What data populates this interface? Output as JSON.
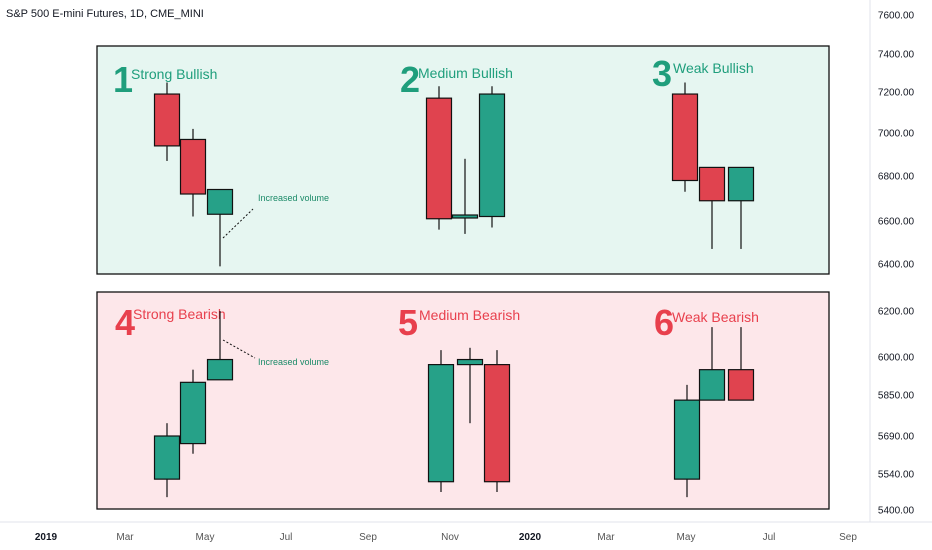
{
  "chart_title": "S&P 500 E-mini Futures, 1D, CME_MINI",
  "colors": {
    "bull": "#26a188",
    "bear": "#e0434f",
    "bull_num": "#1f9e7c",
    "bear_num": "#e8404d",
    "bull_panel": "#e6f6f1",
    "bear_panel": "#fde7ea"
  },
  "chart_data": {
    "type": "candlestick",
    "y_axis_ticks": [
      "7600.00",
      "7400.00",
      "7200.00",
      "7000.00",
      "6800.00",
      "6600.00",
      "6400.00",
      "6200.00",
      "6000.00",
      "5850.00",
      "5690.00",
      "5540.00",
      "5400.00"
    ],
    "x_axis_ticks": [
      {
        "label": "2019",
        "year": true
      },
      {
        "label": "Mar"
      },
      {
        "label": "May"
      },
      {
        "label": "Jul"
      },
      {
        "label": "Sep"
      },
      {
        "label": "Nov"
      },
      {
        "label": "2020",
        "year": true
      },
      {
        "label": "Mar"
      },
      {
        "label": "May"
      },
      {
        "label": "Jul"
      },
      {
        "label": "Sep"
      }
    ],
    "panels": [
      {
        "number": "1",
        "label": "Strong Bullish",
        "type": "bull",
        "candles": [
          {
            "open": 7190,
            "high": 7250,
            "low": 6870,
            "close": 6940
          },
          {
            "open": 6970,
            "high": 7020,
            "low": 6620,
            "close": 6720
          },
          {
            "open": 6630,
            "high": 6740,
            "low": 6390,
            "close": 6740
          }
        ],
        "note": "Increased volume"
      },
      {
        "number": "2",
        "label": "Medium Bullish",
        "type": "bull",
        "candles": [
          {
            "open": 7170,
            "high": 7230,
            "low": 6560,
            "close": 6610
          },
          {
            "open": 6620,
            "high": 6880,
            "low": 6540,
            "close": 6620
          },
          {
            "open": 6620,
            "high": 7230,
            "low": 6570,
            "close": 7190
          }
        ]
      },
      {
        "number": "3",
        "label": "Weak Bullish",
        "type": "bull",
        "candles": [
          {
            "open": 7190,
            "high": 7250,
            "low": 6730,
            "close": 6780
          },
          {
            "open": 6840,
            "high": 6840,
            "low": 6470,
            "close": 6690
          },
          {
            "open": 6690,
            "high": 6840,
            "low": 6470,
            "close": 6840
          }
        ]
      },
      {
        "number": "4",
        "label": "Strong Bearish",
        "type": "bear",
        "candles": [
          {
            "open": 5520,
            "high": 5740,
            "low": 5450,
            "close": 5690
          },
          {
            "open": 5660,
            "high": 5950,
            "low": 5620,
            "close": 5900
          },
          {
            "open": 5910,
            "high": 6200,
            "low": 5910,
            "close": 5990
          }
        ],
        "note": "Increased volume"
      },
      {
        "number": "5",
        "label": "Medium Bearish",
        "type": "bear",
        "candles": [
          {
            "open": 5510,
            "high": 6030,
            "low": 5470,
            "close": 5970
          },
          {
            "open": 5970,
            "high": 6040,
            "low": 5740,
            "close": 5990
          },
          {
            "open": 5970,
            "high": 6030,
            "low": 5470,
            "close": 5510
          }
        ]
      },
      {
        "number": "6",
        "label": "Weak Bearish",
        "type": "bear",
        "candles": [
          {
            "open": 5520,
            "high": 5890,
            "low": 5450,
            "close": 5830
          },
          {
            "open": 5830,
            "high": 6130,
            "low": 5830,
            "close": 5950
          },
          {
            "open": 5950,
            "high": 6130,
            "low": 5830,
            "close": 5830
          }
        ]
      }
    ]
  }
}
